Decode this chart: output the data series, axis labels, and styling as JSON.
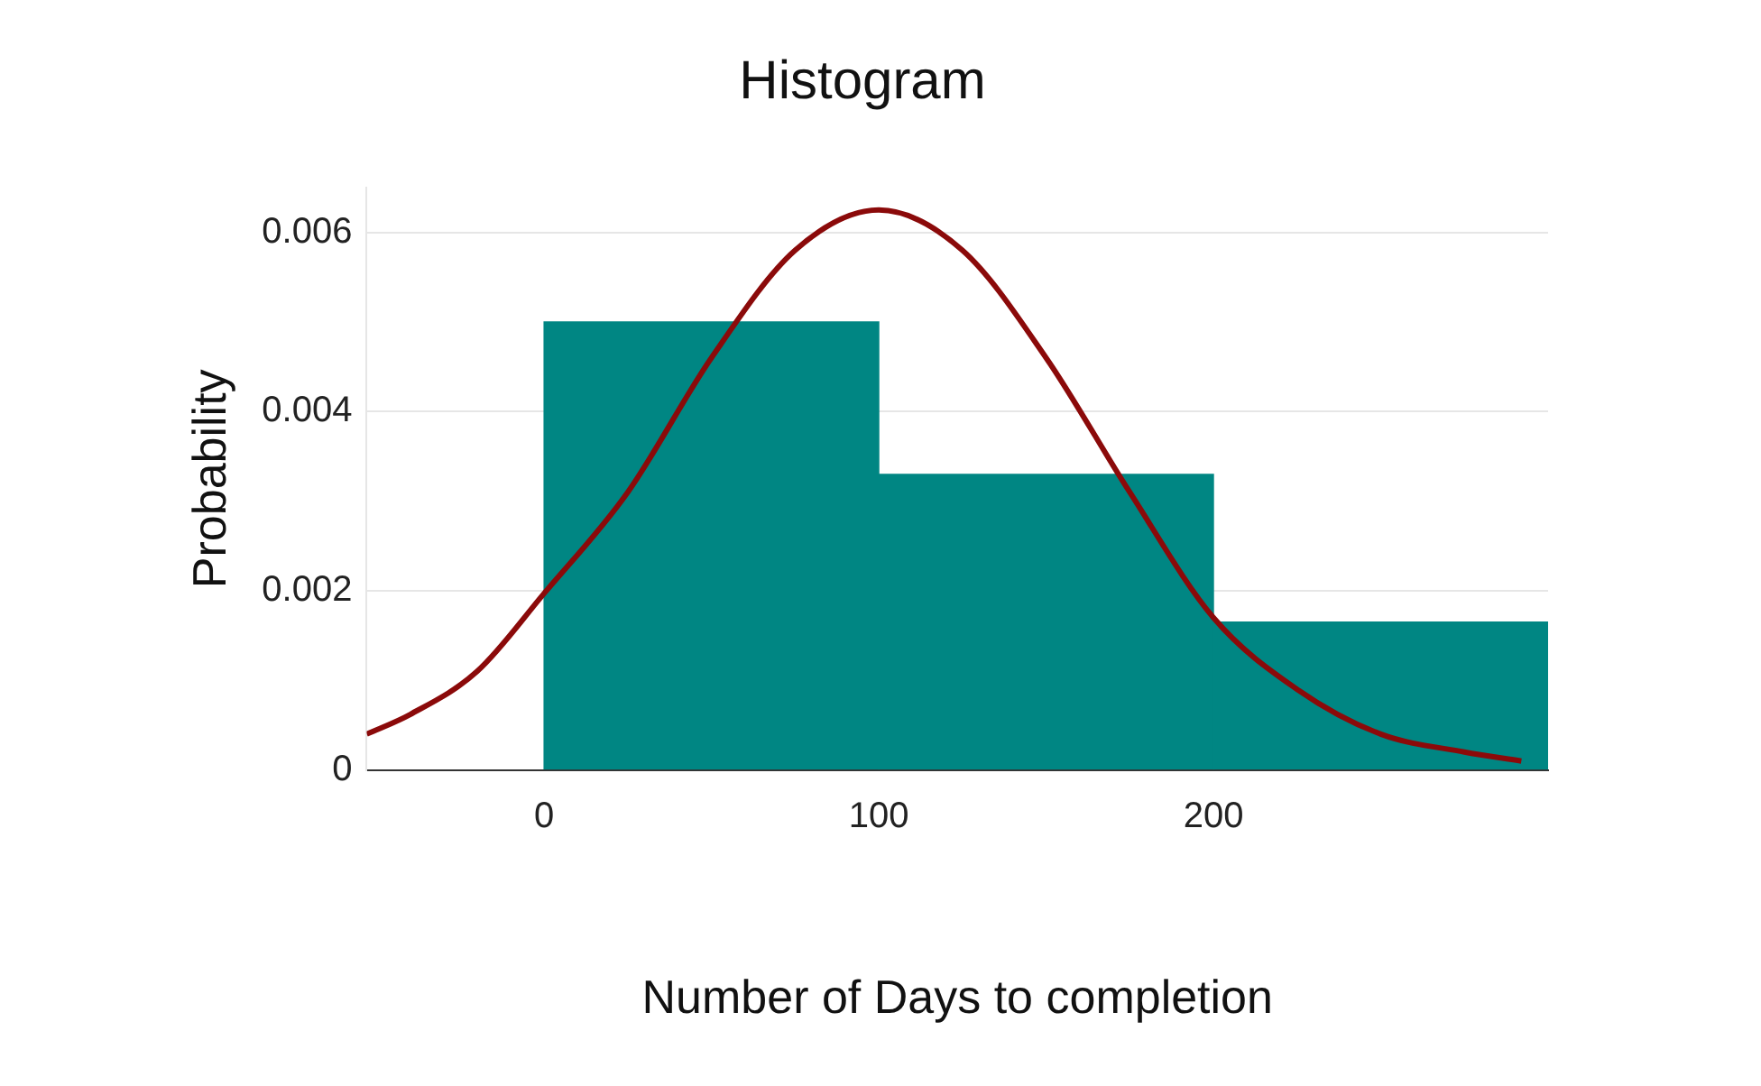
{
  "chart_data": {
    "type": "histogram",
    "title": "Histogram",
    "xlabel": "Number of Days to completion",
    "ylabel": "Probability",
    "bins": [
      0,
      100,
      200,
      300
    ],
    "values": [
      0.005,
      0.0033,
      0.00165
    ],
    "color": "#008683",
    "series": [
      {
        "type": "line",
        "color": "#8b0a0a",
        "x": [
          -53,
          -40,
          -20,
          0,
          25,
          50,
          75,
          100,
          125,
          150,
          175,
          200,
          225,
          250,
          275,
          292
        ],
        "values": [
          0.0004,
          0.00062,
          0.0011,
          0.00197,
          0.0031,
          0.0046,
          0.0058,
          0.00625,
          0.0058,
          0.0046,
          0.0031,
          0.0017,
          0.0009,
          0.0004,
          0.0002,
          0.0001
        ]
      }
    ],
    "xlim": [
      -53,
      300
    ],
    "xticks": [
      0,
      100,
      200
    ],
    "ylim": [
      0,
      0.0065
    ],
    "yticks": [
      0,
      0.002,
      0.004,
      0.006
    ],
    "grid": "y",
    "legend": false
  }
}
